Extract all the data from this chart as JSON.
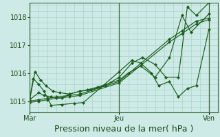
{
  "background_color": "#ceeae6",
  "plot_bg_color": "#ceeae6",
  "grid_color": "#aad4cc",
  "line_color": "#1a5c1a",
  "marker_color": "#1a5c1a",
  "xlabel": "Pression niveau de la mer( hPa )",
  "xtick_labels": [
    "Mar",
    "Jeu",
    "Ven"
  ],
  "xtick_positions": [
    0.0,
    0.5,
    1.0
  ],
  "ylim": [
    1014.6,
    1018.5
  ],
  "yticks": [
    1015,
    1016,
    1017,
    1018
  ],
  "xlim": [
    0.0,
    1.05
  ],
  "series": [
    {
      "x": [
        0.0,
        0.02,
        0.05,
        0.08,
        0.12,
        0.18,
        0.25,
        0.3,
        0.5,
        0.57,
        0.62,
        0.68,
        0.72,
        0.78,
        0.83,
        0.88,
        0.93,
        1.0
      ],
      "y": [
        1015.1,
        1015.8,
        1015.6,
        1015.35,
        1014.85,
        1014.88,
        1014.92,
        1014.95,
        1016.05,
        1016.45,
        1016.35,
        1016.0,
        1015.55,
        1015.7,
        1015.15,
        1015.45,
        1015.55,
        1017.55
      ]
    },
    {
      "x": [
        0.0,
        0.05,
        0.08,
        0.12,
        0.18,
        0.22,
        0.28,
        0.32,
        0.38,
        0.5,
        0.55,
        0.62,
        0.7,
        0.78,
        0.85,
        0.9,
        1.0
      ],
      "y": [
        1015.05,
        1015.3,
        1015.2,
        1015.15,
        1015.1,
        1015.25,
        1015.35,
        1015.4,
        1015.5,
        1015.75,
        1016.0,
        1016.25,
        1015.85,
        1016.55,
        1018.05,
        1017.45,
        1018.1
      ]
    },
    {
      "x": [
        0.0,
        0.05,
        0.1,
        0.15,
        0.22,
        0.28,
        0.5,
        0.78,
        0.85,
        0.93,
        1.0
      ],
      "y": [
        1015.0,
        1015.05,
        1015.1,
        1015.15,
        1015.2,
        1015.25,
        1015.7,
        1017.2,
        1017.5,
        1017.85,
        1017.95
      ]
    },
    {
      "x": [
        0.0,
        0.05,
        0.1,
        0.15,
        0.22,
        0.28,
        0.5,
        0.78,
        0.85,
        0.93,
        1.0
      ],
      "y": [
        1014.95,
        1015.0,
        1015.05,
        1015.1,
        1015.15,
        1015.2,
        1015.65,
        1017.1,
        1017.4,
        1017.75,
        1017.9
      ]
    },
    {
      "x": [
        0.0,
        0.03,
        0.06,
        0.09,
        0.13,
        0.17,
        0.22,
        0.28,
        0.34,
        0.42,
        0.5,
        0.57,
        0.63,
        0.7,
        0.76,
        0.83,
        0.88,
        0.93,
        1.0
      ],
      "y": [
        1015.05,
        1016.05,
        1015.75,
        1015.55,
        1015.35,
        1015.3,
        1015.25,
        1015.35,
        1015.4,
        1015.55,
        1015.85,
        1016.35,
        1016.55,
        1016.3,
        1015.85,
        1015.85,
        1018.35,
        1018.05,
        1018.5
      ]
    }
  ],
  "vline_positions": [
    0.0,
    0.5,
    1.0
  ],
  "xlabel_fontsize": 9,
  "tick_fontsize": 7,
  "figwidth": 3.2,
  "figheight": 2.0,
  "dpi": 100
}
